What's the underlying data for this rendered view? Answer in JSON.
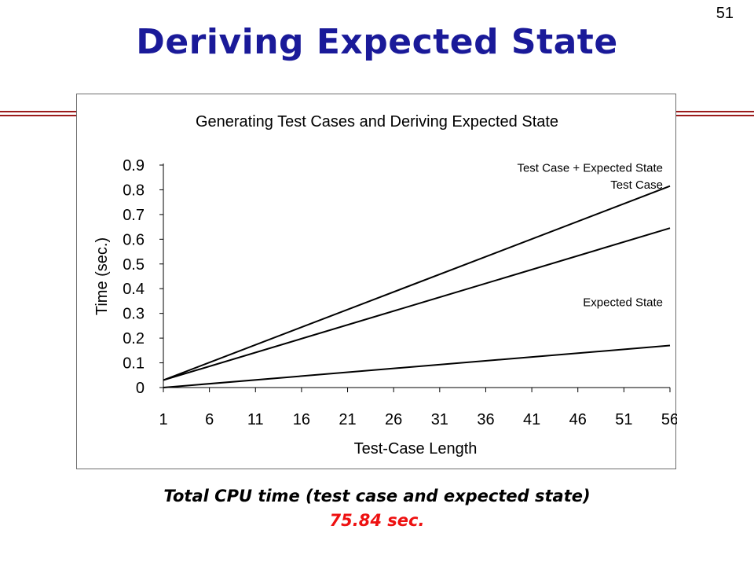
{
  "slide": {
    "number": "51",
    "title": "Deriving Expected State",
    "caption": "Total CPU time (test case and expected state)",
    "total": "75.84 sec.",
    "title_color": "#1a1a99",
    "rule_color": "#9b1c1c",
    "total_color": "#ee1111"
  },
  "chart_data": {
    "type": "line",
    "title": "Generating Test Cases and Deriving Expected State",
    "xlabel": "Test-Case Length",
    "ylabel": "Time (sec.)",
    "x": [
      1,
      56
    ],
    "xticks": [
      "1",
      "6",
      "11",
      "16",
      "21",
      "26",
      "31",
      "36",
      "41",
      "46",
      "51",
      "56"
    ],
    "ylim": [
      0,
      0.9
    ],
    "yticks": [
      "0",
      "0.1",
      "0.2",
      "0.3",
      "0.4",
      "0.5",
      "0.6",
      "0.7",
      "0.8",
      "0.9"
    ],
    "grid": false,
    "series": [
      {
        "name": "Test Case + Expected State",
        "values": [
          0.03,
          0.815
        ]
      },
      {
        "name": "Test Case",
        "values": [
          0.03,
          0.645
        ]
      },
      {
        "name": "Expected State",
        "values": [
          0.0,
          0.17
        ]
      }
    ]
  }
}
